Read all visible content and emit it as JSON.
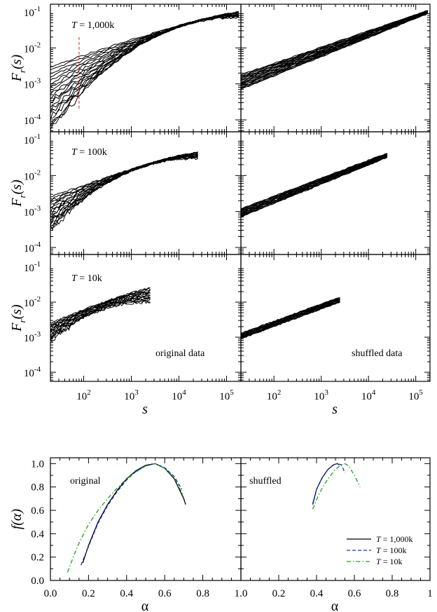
{
  "chart_data": [
    {
      "type": "line",
      "title": "",
      "xlabel": "s",
      "ylabel_main": "F",
      "ylabel_sub": "r",
      "ylabel_arg": "(s)",
      "xscale": "log",
      "yscale": "log",
      "xlim": [
        20,
        200000
      ],
      "ylim": [
        5e-05,
        0.1
      ],
      "x_ticks": [
        {
          "value": 100,
          "base": "10",
          "exp": "2"
        },
        {
          "value": 1000,
          "base": "10",
          "exp": "3"
        },
        {
          "value": 10000,
          "base": "10",
          "exp": "4"
        },
        {
          "value": 100000,
          "base": "10",
          "exp": "5"
        }
      ],
      "y_ticks": [
        {
          "value": 0.0001,
          "base": "10",
          "exp": "-4"
        },
        {
          "value": 0.001,
          "base": "10",
          "exp": "-3"
        },
        {
          "value": 0.01,
          "base": "10",
          "exp": "-2"
        },
        {
          "value": 0.1,
          "base": "10",
          "exp": "-1"
        }
      ],
      "panels": [
        {
          "id": "orig-1000k",
          "row": 0,
          "col": 0,
          "label": "T = 1,000k",
          "shuffled": false,
          "s_max": 180000,
          "n_curves": 20,
          "start_range": [
            5e-05,
            0.003
          ],
          "end_range": [
            0.07,
            0.1
          ],
          "dashed_marker_s": 80
        },
        {
          "id": "shuf-1000k",
          "row": 0,
          "col": 1,
          "label": "",
          "shuffled": true,
          "s_max": 180000,
          "n_curves": 20,
          "start_range": [
            0.0007,
            0.0018
          ],
          "end_range": [
            0.09,
            0.11
          ]
        },
        {
          "id": "orig-100k",
          "row": 1,
          "col": 0,
          "label": "T = 100k",
          "shuffled": false,
          "s_max": 25000,
          "n_curves": 18,
          "start_range": [
            0.0003,
            0.0025
          ],
          "end_range": [
            0.03,
            0.045
          ]
        },
        {
          "id": "shuf-100k",
          "row": 1,
          "col": 1,
          "label": "",
          "shuffled": true,
          "s_max": 25000,
          "n_curves": 18,
          "start_range": [
            0.0007,
            0.0012
          ],
          "end_range": [
            0.032,
            0.042
          ]
        },
        {
          "id": "orig-10k",
          "row": 2,
          "col": 0,
          "label": "T = 10k",
          "shuffled": false,
          "s_max": 2500,
          "n_curves": 16,
          "start_range": [
            0.0008,
            0.0025
          ],
          "end_range": [
            0.01,
            0.025
          ]
        },
        {
          "id": "shuf-10k",
          "row": 2,
          "col": 1,
          "label": "",
          "shuffled": true,
          "s_max": 2500,
          "n_curves": 16,
          "start_range": [
            0.0009,
            0.0013
          ],
          "end_range": [
            0.01,
            0.014
          ]
        }
      ],
      "annotations": [
        "original data",
        "shuffled data"
      ]
    },
    {
      "type": "line",
      "title": "",
      "xlabel": "α",
      "ylabel": "f(α)",
      "xlim": [
        0,
        1
      ],
      "ylim": [
        0,
        1.05
      ],
      "x_tick_labels": [
        "0.0",
        "0.2",
        "0.4",
        "0.6",
        "0.8",
        "1.0"
      ],
      "x_tick_labels_right": [
        "0.2",
        "0.4",
        "0.6",
        "0.8",
        "1"
      ],
      "y_tick_labels": [
        "0.0",
        "0.2",
        "0.4",
        "0.6",
        "0.8",
        "1.0"
      ],
      "panels": [
        {
          "id": "original",
          "label": "original"
        },
        {
          "id": "shuffled",
          "label": "shuffled"
        }
      ],
      "legend_placement": "bottom-right",
      "series": [
        {
          "name": "T = 1,000k",
          "style": "solid",
          "color": "#000000",
          "original": [
            [
              0.17,
              0.15
            ],
            [
              0.2,
              0.3
            ],
            [
              0.25,
              0.5
            ],
            [
              0.3,
              0.65
            ],
            [
              0.35,
              0.77
            ],
            [
              0.4,
              0.87
            ],
            [
              0.45,
              0.94
            ],
            [
              0.5,
              0.985
            ],
            [
              0.55,
              1.0
            ],
            [
              0.6,
              0.96
            ],
            [
              0.65,
              0.87
            ],
            [
              0.7,
              0.7
            ],
            [
              0.71,
              0.65
            ]
          ],
          "shuffled": [
            [
              0.38,
              0.65
            ],
            [
              0.4,
              0.78
            ],
            [
              0.43,
              0.88
            ],
            [
              0.46,
              0.95
            ],
            [
              0.49,
              0.99
            ],
            [
              0.51,
              1.0
            ],
            [
              0.52,
              0.99
            ]
          ]
        },
        {
          "name": "T = 100k",
          "style": "dashed",
          "color": "#1a2fc4",
          "original": [
            [
              0.16,
              0.13
            ],
            [
              0.2,
              0.29
            ],
            [
              0.25,
              0.49
            ],
            [
              0.3,
              0.64
            ],
            [
              0.35,
              0.76
            ],
            [
              0.4,
              0.86
            ],
            [
              0.45,
              0.935
            ],
            [
              0.5,
              0.98
            ],
            [
              0.55,
              1.0
            ],
            [
              0.6,
              0.965
            ],
            [
              0.65,
              0.89
            ],
            [
              0.69,
              0.78
            ]
          ],
          "shuffled": [
            [
              0.38,
              0.66
            ],
            [
              0.4,
              0.78
            ],
            [
              0.43,
              0.88
            ],
            [
              0.46,
              0.95
            ],
            [
              0.49,
              0.99
            ],
            [
              0.51,
              1.0
            ],
            [
              0.53,
              0.99
            ],
            [
              0.54,
              0.96
            ],
            [
              0.55,
              0.92
            ]
          ]
        },
        {
          "name": "T = 10k",
          "style": "dashdot",
          "color": "#1e9e1e",
          "original": [
            [
              0.09,
              0.07
            ],
            [
              0.12,
              0.2
            ],
            [
              0.15,
              0.32
            ],
            [
              0.2,
              0.48
            ],
            [
              0.25,
              0.6
            ],
            [
              0.3,
              0.7
            ],
            [
              0.35,
              0.79
            ],
            [
              0.4,
              0.87
            ],
            [
              0.45,
              0.93
            ],
            [
              0.5,
              0.98
            ],
            [
              0.55,
              1.0
            ],
            [
              0.6,
              0.96
            ],
            [
              0.65,
              0.88
            ],
            [
              0.7,
              0.72
            ]
          ],
          "shuffled": [
            [
              0.38,
              0.61
            ],
            [
              0.41,
              0.73
            ],
            [
              0.44,
              0.82
            ],
            [
              0.47,
              0.89
            ],
            [
              0.5,
              0.95
            ],
            [
              0.53,
              0.99
            ],
            [
              0.55,
              1.0
            ],
            [
              0.57,
              0.98
            ],
            [
              0.6,
              0.9
            ],
            [
              0.63,
              0.8
            ]
          ]
        }
      ]
    }
  ]
}
